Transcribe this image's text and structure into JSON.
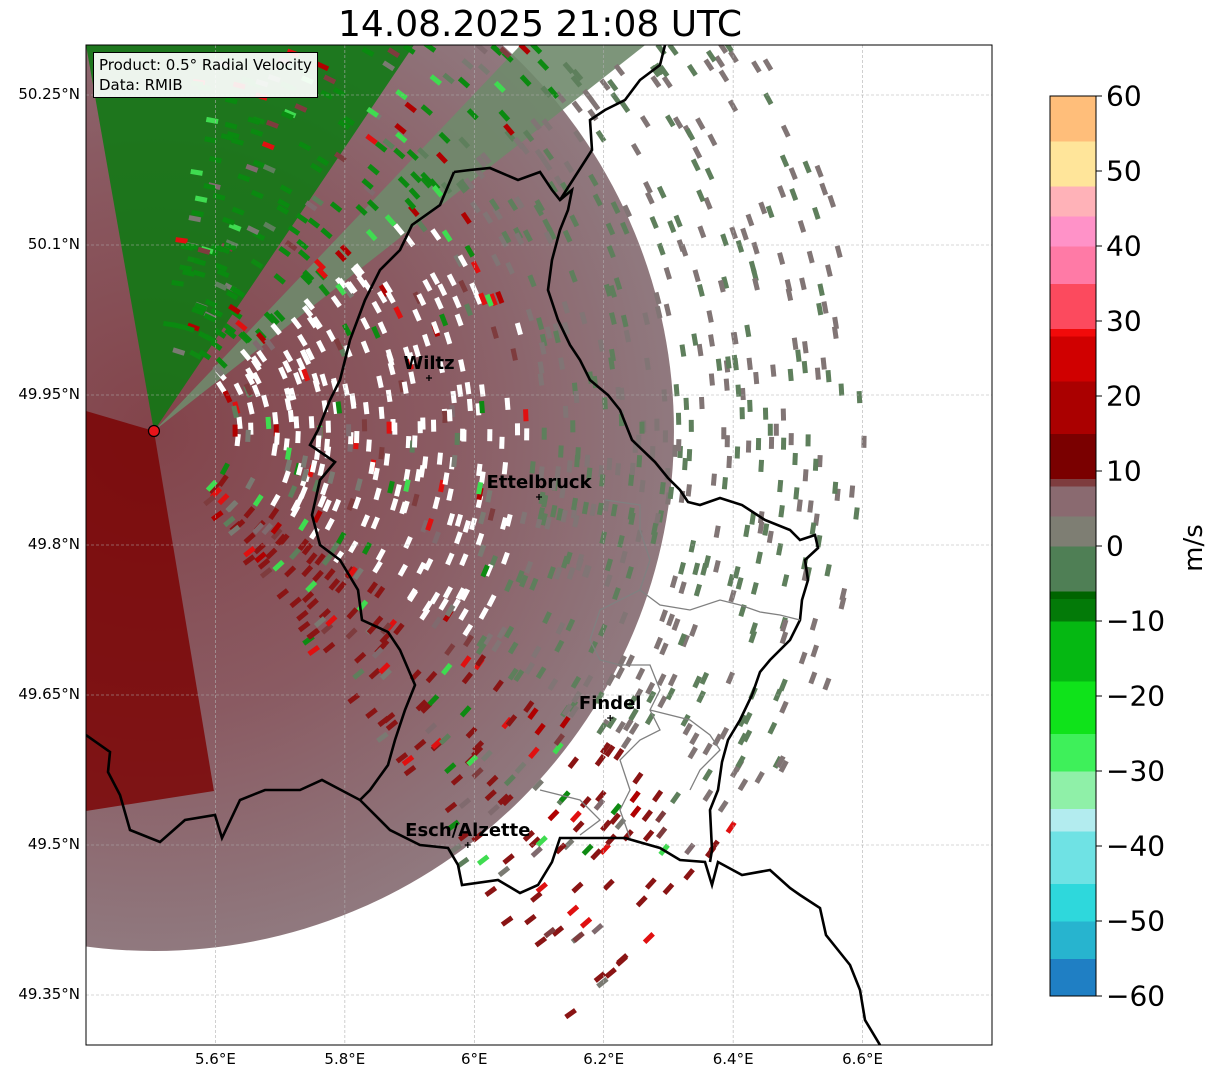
{
  "title": "14.08.2025 21:08 UTC",
  "info": {
    "product": "Product: 0.5° Radial Velocity",
    "data": "Data: RMIB"
  },
  "map_extent": {
    "lon_min": 5.4,
    "lon_max": 6.8,
    "lat_min": 49.3,
    "lat_max": 50.3
  },
  "lat_ticks": [
    {
      "value": 50.25,
      "label": "50.25°N"
    },
    {
      "value": 50.1,
      "label": "50.1°N"
    },
    {
      "value": 49.95,
      "label": "49.95°N"
    },
    {
      "value": 49.8,
      "label": "49.8°N"
    },
    {
      "value": 49.65,
      "label": "49.65°N"
    },
    {
      "value": 49.5,
      "label": "49.5°N"
    },
    {
      "value": 49.35,
      "label": "49.35°N"
    }
  ],
  "lon_ticks": [
    {
      "value": 5.6,
      "label": "5.6°E"
    },
    {
      "value": 5.8,
      "label": "5.8°E"
    },
    {
      "value": 6.0,
      "label": "6°E"
    },
    {
      "value": 6.2,
      "label": "6.2°E"
    },
    {
      "value": 6.4,
      "label": "6.4°E"
    },
    {
      "value": 6.6,
      "label": "6.6°E"
    }
  ],
  "cities": [
    {
      "name": "Wiltz",
      "lon": 5.93,
      "lat": 49.967
    },
    {
      "name": "Ettelbruck",
      "lon": 6.1,
      "lat": 49.848
    },
    {
      "name": "Findel",
      "lon": 6.21,
      "lat": 49.627
    },
    {
      "name": "Esch/Alzette",
      "lon": 5.99,
      "lat": 49.5
    }
  ],
  "radar_site": {
    "lon": 5.505,
    "lat": 49.914,
    "color": "#e8141a"
  },
  "colorbar": {
    "unit": "m/s",
    "min": -60,
    "max": 60,
    "ticks": [
      {
        "value": 60,
        "label": "60"
      },
      {
        "value": 50,
        "label": "50"
      },
      {
        "value": 40,
        "label": "40"
      },
      {
        "value": 30,
        "label": "30"
      },
      {
        "value": 20,
        "label": "20"
      },
      {
        "value": 10,
        "label": "10"
      },
      {
        "value": 0,
        "label": "0"
      },
      {
        "value": -10,
        "label": "−10"
      },
      {
        "value": -20,
        "label": "−20"
      },
      {
        "value": -30,
        "label": "−30"
      },
      {
        "value": -40,
        "label": "−40"
      },
      {
        "value": -50,
        "label": "−50"
      },
      {
        "value": -60,
        "label": "−60"
      }
    ],
    "stops": [
      {
        "value": -60,
        "color": "#1f7fc4"
      },
      {
        "value": -55,
        "color": "#27b4cf"
      },
      {
        "value": -50,
        "color": "#2ed8dc"
      },
      {
        "value": -45,
        "color": "#6fe2e4"
      },
      {
        "value": -38,
        "color": "#b3ecef"
      },
      {
        "value": -35,
        "color": "#8ff0a8"
      },
      {
        "value": -30,
        "color": "#3ef05a"
      },
      {
        "value": -25,
        "color": "#0fe31a"
      },
      {
        "value": -18,
        "color": "#05b812"
      },
      {
        "value": -10,
        "color": "#037a08"
      },
      {
        "value": -7,
        "color": "#006400"
      },
      {
        "value": -6,
        "color": "#4f7f55"
      },
      {
        "value": 0,
        "color": "#7e7e73"
      },
      {
        "value": 4,
        "color": "#8a6a70"
      },
      {
        "value": 8,
        "color": "#7e3c3e"
      },
      {
        "value": 9,
        "color": "#7a0000"
      },
      {
        "value": 15,
        "color": "#aa0000"
      },
      {
        "value": 22,
        "color": "#d00000"
      },
      {
        "value": 28,
        "color": "#f20a0a"
      },
      {
        "value": 29,
        "color": "#fc4a5e"
      },
      {
        "value": 35,
        "color": "#ff7aa6"
      },
      {
        "value": 40,
        "color": "#ff92c8"
      },
      {
        "value": 44,
        "color": "#ffb2b8"
      },
      {
        "value": 48,
        "color": "#ffe59a"
      },
      {
        "value": 54,
        "color": "#ffbe7a"
      },
      {
        "value": 60,
        "color": "#ff9a52"
      }
    ]
  },
  "colors": {
    "border": "#000000",
    "canton_border": "#808080",
    "grid": "#b0b0b0",
    "tangential_band": "#6f8a6b",
    "approach_dark_green": "#0a7a10",
    "receding_maroon": "#7c3a41",
    "outbound_dark_red": "#7a0000"
  }
}
